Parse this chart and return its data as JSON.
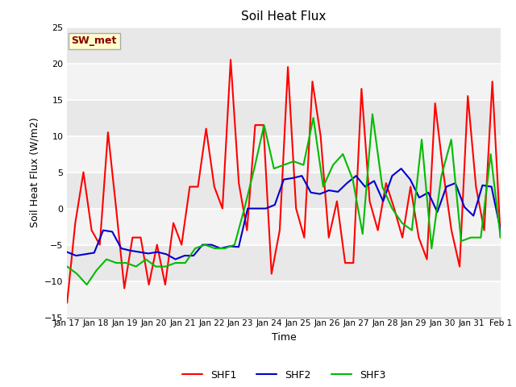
{
  "title": "Soil Heat Flux",
  "ylabel": "Soil Heat Flux (W/m2)",
  "xlabel": "Time",
  "ylim": [
    -15,
    25
  ],
  "yticks": [
    -15,
    -10,
    -5,
    0,
    5,
    10,
    15,
    20,
    25
  ],
  "bg_color": "#e8e8e8",
  "annotation_text": "SW_met",
  "annotation_bg": "#ffffcc",
  "annotation_border": "#aaaaaa",
  "annotation_text_color": "#880000",
  "shf1_color": "#ff0000",
  "shf2_color": "#0000cc",
  "shf3_color": "#00bb00",
  "line_width": 1.5,
  "xtick_labels": [
    "Jan 17",
    "Jan 18",
    "Jan 19",
    "Jan 20",
    "Jan 21",
    "Jan 22",
    "Jan 23",
    "Jan 24",
    "Jan 25",
    "Jan 26",
    "Jan 27",
    "Jan 28",
    "Jan 29",
    "Jan 30",
    "Jan 31",
    "Feb 1"
  ],
  "shf1": [
    -13,
    -2,
    5,
    -3,
    -5,
    10.5,
    0,
    -11,
    -4,
    -4,
    -10.5,
    -5,
    -10.5,
    -2,
    -5,
    3,
    3,
    11,
    3,
    0,
    20.5,
    3.5,
    -3,
    11.5,
    11.5,
    -9,
    -3,
    19.5,
    0,
    -4,
    17.5,
    10,
    -4,
    1,
    -7.5,
    -7.5,
    16.5,
    1,
    -3,
    3.5,
    0,
    -4,
    3,
    -4,
    -7,
    14.5,
    5,
    -3,
    -8,
    15.5,
    3,
    -3,
    17.5,
    -4
  ],
  "shf2": [
    -6,
    -6.5,
    -6.3,
    -6.1,
    -3,
    -3.2,
    -5.5,
    -5.8,
    -6,
    -6.2,
    -6.0,
    -6.3,
    -7,
    -6.5,
    -6.5,
    -5,
    -5,
    -5.5,
    -5.2,
    -5.3,
    0,
    0,
    0,
    0.5,
    4,
    4.2,
    4.5,
    2.2,
    2.0,
    2.5,
    2.3,
    3.5,
    4.5,
    3.0,
    3.8,
    1.0,
    4.5,
    5.5,
    4.0,
    1.5,
    2.2,
    -0.5,
    3.0,
    3.5,
    0.2,
    -1.0,
    3.2,
    3.0,
    -3
  ],
  "shf3": [
    -8,
    -9,
    -10.5,
    -8.5,
    -7,
    -7.5,
    -7.5,
    -8,
    -7,
    -8,
    -8,
    -7.5,
    -7.5,
    -5.5,
    -5,
    -5.5,
    -5.5,
    -5,
    0,
    5.5,
    11.5,
    5.5,
    6,
    6.5,
    6,
    12.5,
    3,
    6,
    7.5,
    4,
    -3.5,
    13,
    3,
    0,
    -2,
    -3,
    9.5,
    -5.5,
    4.5,
    9.5,
    -4.5,
    -4,
    -4,
    7.5,
    -4
  ]
}
